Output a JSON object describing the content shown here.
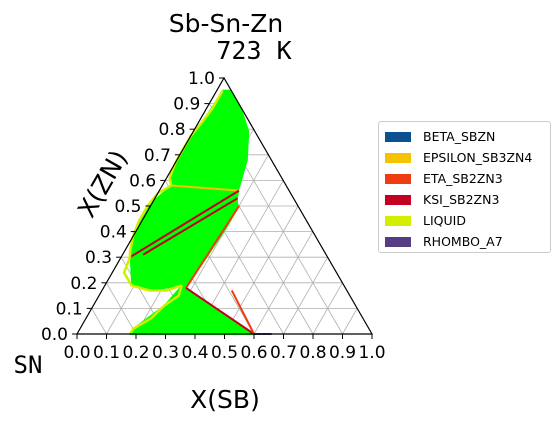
{
  "chart_data": {
    "type": "ternary-phase-diagram",
    "title": "Sb-Sn-Zn",
    "subtitle": "723  K",
    "xlabel": "X(SB)",
    "ylabel": "X(ZN)",
    "corner_label": "SN",
    "x_ticks": [
      "0.0",
      "0.1",
      "0.2",
      "0.3",
      "0.4",
      "0.5",
      "0.6",
      "0.7",
      "0.8",
      "0.9",
      "1.0"
    ],
    "y_ticks": [
      "0.0",
      "0.1",
      "0.2",
      "0.3",
      "0.4",
      "0.5",
      "0.6",
      "0.7",
      "0.8",
      "0.9",
      "1.0"
    ],
    "xlim": [
      0,
      1
    ],
    "ylim": [
      0,
      1
    ],
    "grid": true,
    "legend_position": "right",
    "legend": [
      {
        "name": "BETA_SBZN",
        "color": "#0b5190"
      },
      {
        "name": "EPSILON_SB3ZN4",
        "color": "#f5c400"
      },
      {
        "name": "ETA_SB2ZN3",
        "color": "#ef3c12"
      },
      {
        "name": "KSI_SB2ZN3",
        "color": "#c3001f"
      },
      {
        "name": "LIQUID",
        "color": "#d4ee00"
      },
      {
        "name": "RHOMBO_A7",
        "color": "#583c82"
      }
    ],
    "tie_line_color": "#00ff00",
    "liquid_boundaries": [
      [
        [
          0.02,
          0.95
        ],
        [
          0.02,
          0.88
        ],
        [
          0.01,
          0.82
        ],
        [
          0.0,
          0.77
        ],
        [
          0.0,
          0.72
        ],
        [
          0.0,
          0.67
        ],
        [
          0.01,
          0.61
        ],
        [
          0.03,
          0.58
        ]
      ],
      [
        [
          0.03,
          0.58
        ],
        [
          0.0,
          0.55
        ],
        [
          -0.01,
          0.5
        ],
        [
          -0.01,
          0.44
        ],
        [
          0.0,
          0.38
        ],
        [
          0.02,
          0.32
        ],
        [
          0.03,
          0.3
        ]
      ],
      [
        [
          0.03,
          0.3
        ],
        [
          0.04,
          0.24
        ],
        [
          0.09,
          0.19
        ],
        [
          0.16,
          0.17
        ],
        [
          0.22,
          0.17
        ],
        [
          0.26,
          0.19
        ]
      ],
      [
        [
          0.26,
          0.19
        ],
        [
          0.27,
          0.15
        ],
        [
          0.24,
          0.11
        ],
        [
          0.22,
          0.06
        ],
        [
          0.18,
          0.02
        ],
        [
          0.18,
          0.0
        ]
      ]
    ],
    "phase_boundaries": [
      {
        "phase": "EPSILON_SB3ZN4",
        "points": [
          [
            0.03,
            0.58
          ],
          [
            0.27,
            0.56
          ]
        ]
      },
      {
        "phase": "KSI_SB2ZN3",
        "points": [
          [
            0.27,
            0.56
          ],
          [
            0.03,
            0.3
          ]
        ]
      },
      {
        "phase": "KSI_SB2ZN3",
        "points": [
          [
            0.28,
            0.53
          ],
          [
            0.07,
            0.31
          ]
        ]
      },
      {
        "phase": "ETA_SB2ZN3",
        "points": [
          [
            0.3,
            0.5
          ],
          [
            0.28,
            0.18
          ]
        ]
      },
      {
        "phase": "KSI_SB2ZN3",
        "points": [
          [
            0.28,
            0.18
          ],
          [
            0.6,
            0.0
          ]
        ]
      },
      {
        "phase": "ETA_SB2ZN3",
        "points": [
          [
            0.6,
            0.0
          ],
          [
            0.44,
            0.17
          ]
        ]
      },
      {
        "phase": "RHOMBO_A7",
        "points": [
          [
            0.6,
            0.0
          ],
          [
            0.66,
            0.0
          ]
        ]
      }
    ],
    "tie_line_regions": [
      {
        "from": [
          [
            0.02,
            0.95
          ],
          [
            0.01,
            0.82
          ],
          [
            0.0,
            0.72
          ],
          [
            0.01,
            0.61
          ],
          [
            0.03,
            0.58
          ]
        ],
        "to": [
          [
            0.05,
            0.95
          ],
          [
            0.12,
            0.88
          ],
          [
            0.19,
            0.79
          ],
          [
            0.24,
            0.68
          ],
          [
            0.27,
            0.56
          ]
        ]
      },
      {
        "from": [
          [
            0.03,
            0.58
          ],
          [
            -0.01,
            0.5
          ],
          [
            0.0,
            0.38
          ],
          [
            0.03,
            0.3
          ]
        ],
        "to": [
          [
            0.27,
            0.56
          ],
          [
            0.28,
            0.53
          ],
          [
            0.29,
            0.51
          ],
          [
            0.3,
            0.5
          ]
        ]
      },
      {
        "from": [
          [
            0.03,
            0.3
          ],
          [
            0.09,
            0.19
          ],
          [
            0.16,
            0.17
          ],
          [
            0.26,
            0.19
          ]
        ],
        "to": [
          [
            0.3,
            0.5
          ],
          [
            0.3,
            0.42
          ],
          [
            0.29,
            0.3
          ],
          [
            0.28,
            0.18
          ]
        ]
      },
      {
        "from": [
          [
            0.26,
            0.19
          ],
          [
            0.24,
            0.11
          ],
          [
            0.18,
            0.02
          ],
          [
            0.18,
            0.0
          ]
        ],
        "to": [
          [
            0.28,
            0.18
          ],
          [
            0.4,
            0.11
          ],
          [
            0.52,
            0.04
          ],
          [
            0.6,
            0.0
          ]
        ]
      }
    ]
  }
}
